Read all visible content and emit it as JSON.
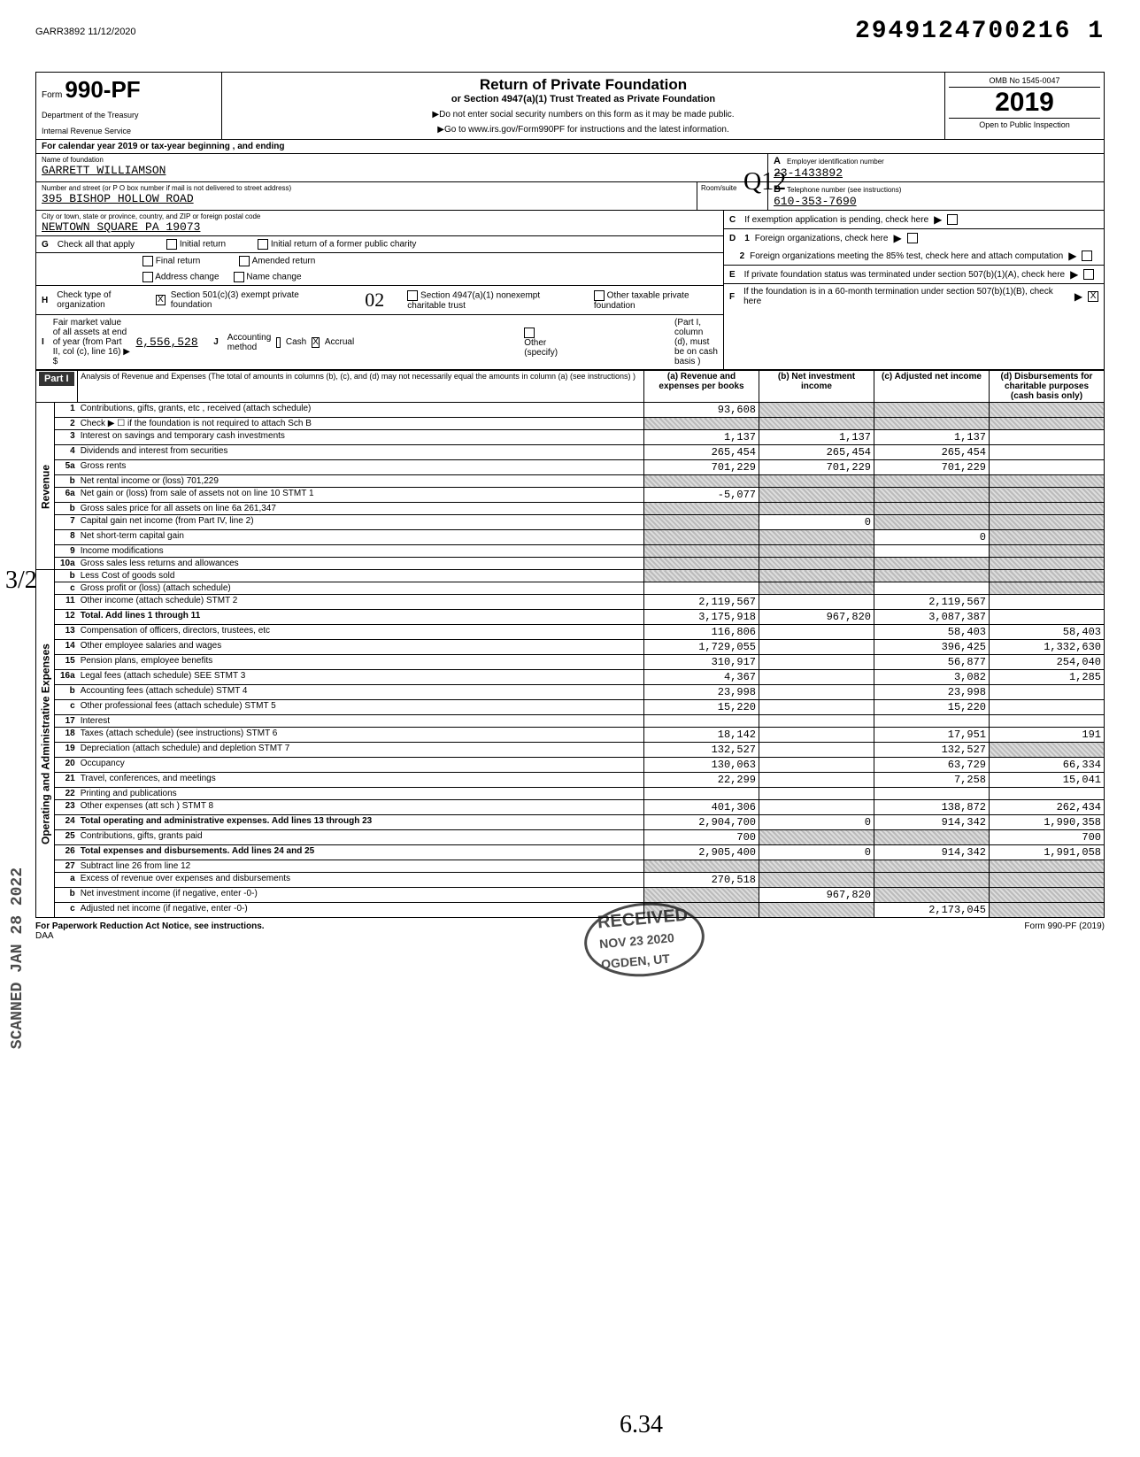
{
  "header": {
    "doc_id": "GARR3892 11/12/2020",
    "big_number": "2949124700216 1",
    "form_prefix": "Form",
    "form_number": "990-PF",
    "dept1": "Department of the Treasury",
    "dept2": "Internal Revenue Service",
    "title": "Return of Private Foundation",
    "subtitle": "or Section 4947(a)(1) Trust Treated as Private Foundation",
    "note1": "▶Do not enter social security numbers on this form as it may be made public.",
    "note2": "▶Go to www.irs.gov/Form990PF for instructions and the latest information.",
    "omb": "OMB No 1545-0047",
    "year": "2019",
    "inspect": "Open to Public Inspection",
    "cal_year": "For calendar year 2019 or tax-year beginning                    , and ending"
  },
  "entity": {
    "name_lbl": "Name of foundation",
    "name": "GARRETT WILLIAMSON",
    "addr_lbl": "Number and street (or P O box number if mail is not delivered to street address)",
    "addr": "395 BISHOP HOLLOW ROAD",
    "room_lbl": "Room/suite",
    "city_lbl": "City or town, state or province, country, and ZIP or foreign postal code",
    "city": "NEWTOWN SQUARE        PA 19073",
    "ein_lbl": "Employer identification number",
    "ein": "23-1433892",
    "tel_lbl": "Telephone number (see instructions)",
    "tel": "610-353-7690",
    "c_lbl": "If exemption application is pending, check here",
    "d1_lbl": "Foreign organizations, check here",
    "d2_lbl": "Foreign organizations meeting the 85% test, check here and attach computation",
    "e_lbl": "If private foundation status was terminated under section 507(b)(1)(A), check here",
    "f_lbl": "If the foundation is in a 60-month termination under section 507(b)(1)(B), check here"
  },
  "g": {
    "lbl": "Check all that apply",
    "opts": [
      "Initial return",
      "Final return",
      "Address change",
      "Initial return of a former public charity",
      "Amended return",
      "Name change"
    ]
  },
  "h": {
    "lbl": "Check type of organization",
    "opt1": "Section 501(c)(3) exempt private foundation",
    "opt2": "Section 4947(a)(1) nonexempt charitable trust",
    "opt3": "Other taxable private foundation",
    "hand": "02"
  },
  "i": {
    "lbl": "Fair market value of all assets at end of year (from Part II, col (c), line 16) ▶ $",
    "val": "6,556,528",
    "j_lbl": "Accounting method",
    "cash": "Cash",
    "accrual": "Accrual",
    "other": "Other (specify)",
    "note": "(Part I, column (d), must be on cash basis )"
  },
  "part1": {
    "hdr": "Part I",
    "desc": "Analysis of Revenue and Expenses (The total of amounts in columns (b), (c), and (d) may not necessarily equal the amounts in column (a) (see instructions) )",
    "cols": [
      "(a) Revenue and expenses per books",
      "(b) Net investment income",
      "(c) Adjusted net income",
      "(d) Disbursements for charitable purposes (cash basis only)"
    ]
  },
  "sections": {
    "rev": "Revenue",
    "exp": "Operating and Administrative Expenses"
  },
  "rows": [
    {
      "n": "1",
      "d": "Contributions, gifts, grants, etc , received (attach schedule)",
      "a": "93,608",
      "b": "",
      "c": "",
      "da": "",
      "sb": true,
      "sc": true,
      "sd": true
    },
    {
      "n": "2",
      "d": "Check ▶ ☐ if the foundation is not required to attach Sch B",
      "a": "",
      "b": "",
      "c": "",
      "da": "",
      "sa": true,
      "sb": true,
      "sc": true,
      "sd": true
    },
    {
      "n": "3",
      "d": "Interest on savings and temporary cash investments",
      "a": "1,137",
      "b": "1,137",
      "c": "1,137",
      "da": ""
    },
    {
      "n": "4",
      "d": "Dividends and interest from securities",
      "a": "265,454",
      "b": "265,454",
      "c": "265,454",
      "da": ""
    },
    {
      "n": "5a",
      "d": "Gross rents",
      "a": "701,229",
      "b": "701,229",
      "c": "701,229",
      "da": ""
    },
    {
      "n": "b",
      "d": "Net rental income or (loss)           701,229",
      "a": "",
      "b": "",
      "c": "",
      "da": "",
      "sa": true,
      "sb": true,
      "sc": true,
      "sd": true
    },
    {
      "n": "6a",
      "d": "Net gain or (loss) from sale of assets not on line 10  STMT 1",
      "a": "-5,077",
      "b": "",
      "c": "",
      "da": "",
      "sb": true,
      "sc": true,
      "sd": true
    },
    {
      "n": "b",
      "d": "Gross sales price for all assets on line 6a        261,347",
      "a": "",
      "b": "",
      "c": "",
      "da": "",
      "sa": true,
      "sb": true,
      "sc": true,
      "sd": true
    },
    {
      "n": "7",
      "d": "Capital gain net income (from Part IV, line 2)",
      "a": "",
      "b": "0",
      "c": "",
      "da": "",
      "sa": true,
      "sc": true,
      "sd": true
    },
    {
      "n": "8",
      "d": "Net short-term capital gain",
      "a": "",
      "b": "",
      "c": "0",
      "da": "",
      "sa": true,
      "sb": true,
      "sd": true
    },
    {
      "n": "9",
      "d": "Income modifications",
      "a": "",
      "b": "",
      "c": "",
      "da": "",
      "sa": true,
      "sb": true,
      "sd": true
    },
    {
      "n": "10a",
      "d": "Gross sales less returns and allowances",
      "a": "",
      "b": "",
      "c": "",
      "da": "",
      "sa": true,
      "sb": true,
      "sc": true,
      "sd": true
    },
    {
      "n": "b",
      "d": "Less Cost of goods sold",
      "a": "",
      "b": "",
      "c": "",
      "da": "",
      "sa": true,
      "sb": true,
      "sc": true,
      "sd": true
    },
    {
      "n": "c",
      "d": "Gross profit or (loss) (attach schedule)",
      "a": "",
      "b": "",
      "c": "",
      "da": "",
      "sb": true,
      "sd": true
    },
    {
      "n": "11",
      "d": "Other income (attach schedule)     STMT 2",
      "a": "2,119,567",
      "b": "",
      "c": "2,119,567",
      "da": ""
    },
    {
      "n": "12",
      "d": "Total. Add lines 1 through 11",
      "a": "3,175,918",
      "b": "967,820",
      "c": "3,087,387",
      "da": "",
      "bold": true
    },
    {
      "n": "13",
      "d": "Compensation of officers, directors, trustees, etc",
      "a": "116,806",
      "b": "",
      "c": "58,403",
      "da": "58,403"
    },
    {
      "n": "14",
      "d": "Other employee salaries and wages",
      "a": "1,729,055",
      "b": "",
      "c": "396,425",
      "da": "1,332,630"
    },
    {
      "n": "15",
      "d": "Pension plans, employee benefits",
      "a": "310,917",
      "b": "",
      "c": "56,877",
      "da": "254,040"
    },
    {
      "n": "16a",
      "d": "Legal fees (attach schedule) SEE STMT 3",
      "a": "4,367",
      "b": "",
      "c": "3,082",
      "da": "1,285"
    },
    {
      "n": "b",
      "d": "Accounting fees (attach schedule)   STMT 4",
      "a": "23,998",
      "b": "",
      "c": "23,998",
      "da": ""
    },
    {
      "n": "c",
      "d": "Other professional fees (attach schedule)  STMT 5",
      "a": "15,220",
      "b": "",
      "c": "15,220",
      "da": ""
    },
    {
      "n": "17",
      "d": "Interest",
      "a": "",
      "b": "",
      "c": "",
      "da": ""
    },
    {
      "n": "18",
      "d": "Taxes (attach schedule) (see instructions)  STMT 6",
      "a": "18,142",
      "b": "",
      "c": "17,951",
      "da": "191"
    },
    {
      "n": "19",
      "d": "Depreciation (attach schedule) and depletion STMT 7",
      "a": "132,527",
      "b": "",
      "c": "132,527",
      "da": "",
      "sd": true
    },
    {
      "n": "20",
      "d": "Occupancy",
      "a": "130,063",
      "b": "",
      "c": "63,729",
      "da": "66,334"
    },
    {
      "n": "21",
      "d": "Travel, conferences, and meetings",
      "a": "22,299",
      "b": "",
      "c": "7,258",
      "da": "15,041"
    },
    {
      "n": "22",
      "d": "Printing and publications",
      "a": "",
      "b": "",
      "c": "",
      "da": ""
    },
    {
      "n": "23",
      "d": "Other expenses (att sch )           STMT 8",
      "a": "401,306",
      "b": "",
      "c": "138,872",
      "da": "262,434"
    },
    {
      "n": "24",
      "d": "Total operating and administrative expenses. Add lines 13 through 23",
      "a": "2,904,700",
      "b": "0",
      "c": "914,342",
      "da": "1,990,358",
      "bold": true
    },
    {
      "n": "25",
      "d": "Contributions, gifts, grants paid",
      "a": "700",
      "b": "",
      "c": "",
      "da": "700",
      "sb": true,
      "sc": true
    },
    {
      "n": "26",
      "d": "Total expenses and disbursements. Add lines 24 and 25",
      "a": "2,905,400",
      "b": "0",
      "c": "914,342",
      "da": "1,991,058",
      "bold": true
    },
    {
      "n": "27",
      "d": "Subtract line 26 from line 12",
      "a": "",
      "b": "",
      "c": "",
      "da": "",
      "sa": true,
      "sb": true,
      "sc": true,
      "sd": true
    },
    {
      "n": "a",
      "d": "Excess of revenue over expenses and disbursements",
      "a": "270,518",
      "b": "",
      "c": "",
      "da": "",
      "sb": true,
      "sc": true,
      "sd": true
    },
    {
      "n": "b",
      "d": "Net investment income (if negative, enter -0-)",
      "a": "",
      "b": "967,820",
      "c": "",
      "da": "",
      "sa": true,
      "sc": true,
      "sd": true
    },
    {
      "n": "c",
      "d": "Adjusted net income (if negative, enter -0-)",
      "a": "",
      "b": "",
      "c": "2,173,045",
      "da": "",
      "sa": true,
      "sb": true,
      "sd": true
    }
  ],
  "footer": {
    "left": "For Paperwork Reduction Act Notice, see instructions.",
    "mid": "DAA",
    "right": "Form 990-PF (2019)"
  },
  "stamps": {
    "received": "RECEIVED",
    "date": "NOV 23 2020",
    "ogden": "OGDEN, UT",
    "scanned": "SCANNED JAN 28 2022",
    "hand_frac": "3/2",
    "hand_init": "Q12",
    "hand_bot": "6.34"
  }
}
